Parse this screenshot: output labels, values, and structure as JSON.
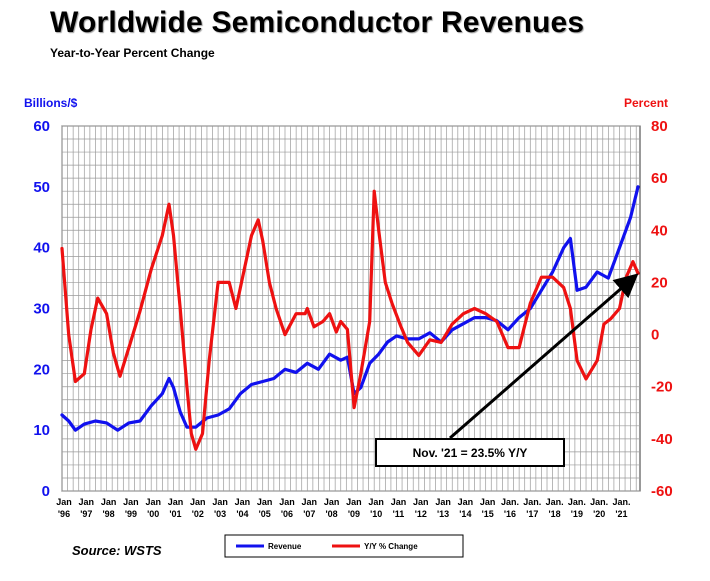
{
  "header": {
    "title": "Worldwide Semiconductor Revenues",
    "subtitle": "Year-to-Year Percent Change",
    "left_unit": "Billions/$",
    "right_unit": "Percent",
    "source": "Source: WSTS"
  },
  "colors": {
    "revenue": "#1111ee",
    "yoy": "#ee1111",
    "grid": "#999999"
  },
  "chart_data": {
    "type": "line",
    "title": "Worldwide Semiconductor Revenues",
    "subtitle": "Year-to-Year Percent Change",
    "ylabel": "Billions/$",
    "y2label": "Percent",
    "ylim": [
      0,
      60
    ],
    "y2lim": [
      -60,
      80
    ],
    "yticks": [
      "0",
      "10",
      "20",
      "30",
      "40",
      "50",
      "60"
    ],
    "y2ticks": [
      "-60",
      "-40",
      "-20",
      "0",
      "20",
      "40",
      "60",
      "80"
    ],
    "grid": true,
    "legend_position": "bottom-center",
    "x_tick_labels": [
      [
        "Jan",
        "'96"
      ],
      [
        "Jan",
        "'97"
      ],
      [
        "Jan",
        "'98"
      ],
      [
        "Jan",
        "'99"
      ],
      [
        "Jan",
        "'00"
      ],
      [
        "Jan",
        "'01"
      ],
      [
        "Jan",
        "'02"
      ],
      [
        "Jan",
        "'03"
      ],
      [
        "Jan",
        "'04"
      ],
      [
        "Jan",
        "'05"
      ],
      [
        "Jan",
        "'06"
      ],
      [
        "Jan",
        "'07"
      ],
      [
        "Jan",
        "'08"
      ],
      [
        "Jan",
        "'09"
      ],
      [
        "Jan",
        "'10"
      ],
      [
        "Jan",
        "'11"
      ],
      [
        "Jan",
        "'12"
      ],
      [
        "Jan",
        "'13"
      ],
      [
        "Jan",
        "'14"
      ],
      [
        "Jan",
        "'15"
      ],
      [
        "Jan.",
        "'16"
      ],
      [
        "Jan.",
        "'17"
      ],
      [
        "Jan.",
        "'18"
      ],
      [
        "Jan.",
        "'19"
      ],
      [
        "Jan.",
        "'20"
      ],
      [
        "Jan.",
        "'21"
      ]
    ],
    "series": [
      {
        "name": "Revenue",
        "axis": "left",
        "color": "#1111ee",
        "points": [
          [
            1996.0,
            12.5
          ],
          [
            1996.3,
            11.5
          ],
          [
            1996.6,
            10
          ],
          [
            1997.0,
            11
          ],
          [
            1997.5,
            11.5
          ],
          [
            1998.0,
            11.2
          ],
          [
            1998.5,
            10
          ],
          [
            1999.0,
            11.2
          ],
          [
            1999.5,
            11.5
          ],
          [
            2000.0,
            14
          ],
          [
            2000.5,
            16
          ],
          [
            2000.8,
            18.5
          ],
          [
            2001.0,
            17
          ],
          [
            2001.3,
            13
          ],
          [
            2001.6,
            10.5
          ],
          [
            2002.0,
            10.5
          ],
          [
            2002.5,
            12
          ],
          [
            2003.0,
            12.5
          ],
          [
            2003.5,
            13.5
          ],
          [
            2004.0,
            16
          ],
          [
            2004.5,
            17.5
          ],
          [
            2005.0,
            18
          ],
          [
            2005.5,
            18.5
          ],
          [
            2006.0,
            20
          ],
          [
            2006.5,
            19.5
          ],
          [
            2007.0,
            21
          ],
          [
            2007.5,
            20
          ],
          [
            2008.0,
            22.5
          ],
          [
            2008.5,
            21.5
          ],
          [
            2008.8,
            22
          ],
          [
            2009.1,
            16
          ],
          [
            2009.4,
            17
          ],
          [
            2009.8,
            21
          ],
          [
            2010.2,
            22.5
          ],
          [
            2010.6,
            24.5
          ],
          [
            2011.0,
            25.5
          ],
          [
            2011.5,
            25
          ],
          [
            2012.0,
            25
          ],
          [
            2012.5,
            26
          ],
          [
            2013.0,
            24.5
          ],
          [
            2013.5,
            26.5
          ],
          [
            2014.0,
            27.5
          ],
          [
            2014.5,
            28.5
          ],
          [
            2015.0,
            28.5
          ],
          [
            2015.5,
            28
          ],
          [
            2016.0,
            26.5
          ],
          [
            2016.5,
            28.5
          ],
          [
            2017.0,
            30
          ],
          [
            2017.5,
            33
          ],
          [
            2018.0,
            36
          ],
          [
            2018.5,
            40
          ],
          [
            2018.8,
            41.5
          ],
          [
            2019.1,
            33
          ],
          [
            2019.5,
            33.5
          ],
          [
            2020.0,
            36
          ],
          [
            2020.5,
            35
          ],
          [
            2021.0,
            40
          ],
          [
            2021.5,
            45
          ],
          [
            2021.83,
            50
          ]
        ]
      },
      {
        "name": "Y/Y % Change",
        "axis": "right",
        "color": "#ee1111",
        "points": [
          [
            1996.0,
            33
          ],
          [
            1996.3,
            0
          ],
          [
            1996.6,
            -18
          ],
          [
            1997.0,
            -15
          ],
          [
            1997.3,
            2
          ],
          [
            1997.6,
            14
          ],
          [
            1998.0,
            8
          ],
          [
            1998.3,
            -7
          ],
          [
            1998.6,
            -16
          ],
          [
            1999.0,
            -5
          ],
          [
            1999.5,
            9
          ],
          [
            2000.0,
            25
          ],
          [
            2000.5,
            38
          ],
          [
            2000.8,
            50
          ],
          [
            2001.0,
            38
          ],
          [
            2001.3,
            10
          ],
          [
            2001.6,
            -20
          ],
          [
            2001.8,
            -38
          ],
          [
            2002.0,
            -44
          ],
          [
            2002.3,
            -38
          ],
          [
            2002.6,
            -10
          ],
          [
            2003.0,
            20
          ],
          [
            2003.5,
            20
          ],
          [
            2003.8,
            10
          ],
          [
            2004.0,
            18
          ],
          [
            2004.5,
            38
          ],
          [
            2004.8,
            44
          ],
          [
            2005.0,
            36
          ],
          [
            2005.3,
            20
          ],
          [
            2005.6,
            10
          ],
          [
            2006.0,
            0
          ],
          [
            2006.5,
            8
          ],
          [
            2006.9,
            8
          ],
          [
            2007.0,
            10
          ],
          [
            2007.3,
            3
          ],
          [
            2007.7,
            5
          ],
          [
            2008.0,
            8
          ],
          [
            2008.3,
            1
          ],
          [
            2008.5,
            5
          ],
          [
            2008.8,
            2
          ],
          [
            2009.1,
            -28
          ],
          [
            2009.4,
            -15
          ],
          [
            2009.8,
            5
          ],
          [
            2010.0,
            55
          ],
          [
            2010.2,
            40
          ],
          [
            2010.5,
            20
          ],
          [
            2010.8,
            12
          ],
          [
            2011.2,
            3
          ],
          [
            2011.5,
            -3
          ],
          [
            2012.0,
            -8
          ],
          [
            2012.5,
            -2
          ],
          [
            2013.0,
            -3
          ],
          [
            2013.5,
            4
          ],
          [
            2014.0,
            8
          ],
          [
            2014.5,
            10
          ],
          [
            2015.0,
            8
          ],
          [
            2015.5,
            5
          ],
          [
            2016.0,
            -5
          ],
          [
            2016.5,
            -5
          ],
          [
            2017.0,
            12
          ],
          [
            2017.5,
            22
          ],
          [
            2018.0,
            22
          ],
          [
            2018.5,
            18
          ],
          [
            2018.8,
            10
          ],
          [
            2019.1,
            -10
          ],
          [
            2019.5,
            -17
          ],
          [
            2020.0,
            -10
          ],
          [
            2020.3,
            4
          ],
          [
            2020.6,
            6
          ],
          [
            2021.0,
            10
          ],
          [
            2021.3,
            22
          ],
          [
            2021.6,
            28
          ],
          [
            2021.83,
            23.5
          ]
        ]
      }
    ],
    "annotation": {
      "text": "Nov. '21 = 23.5% Y/Y",
      "target": [
        2021.83,
        23.5
      ]
    },
    "legend": [
      {
        "name": "Revenue",
        "color": "#1111ee"
      },
      {
        "name": "Y/Y % Change",
        "color": "#ee1111"
      }
    ]
  }
}
